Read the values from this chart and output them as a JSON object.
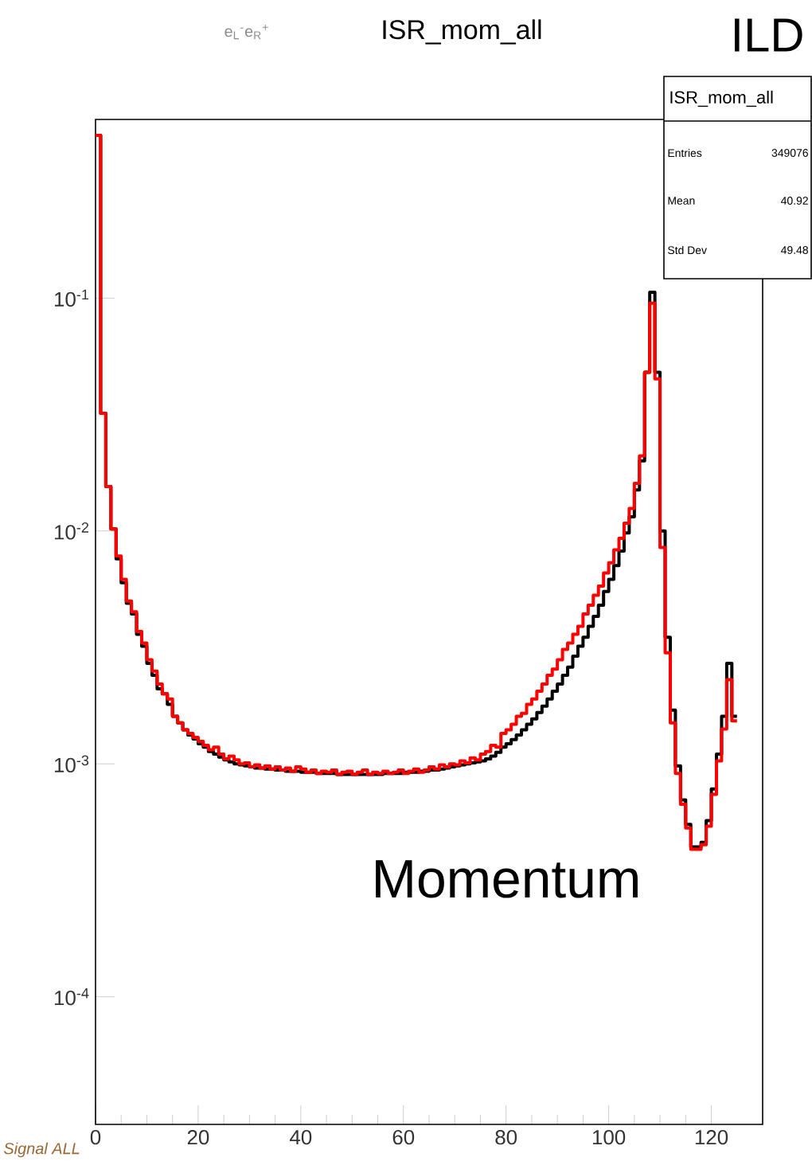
{
  "chart_data": {
    "type": "histogram",
    "title": "ISR_mom_all",
    "annotations": [
      "e$_{L}$$^{-}$e$_{R}$$^{+}$",
      "ILD",
      "ISR_mom_all",
      "Entries",
      "349076",
      "Mean",
      "40.92",
      "Std Dev",
      "49.48",
      "Momentum",
      "Signal ALL"
    ],
    "bins": [
      0,
      1,
      2,
      3,
      4,
      5,
      6,
      7,
      8,
      9,
      10,
      11,
      12,
      13,
      14,
      15,
      16,
      17,
      18,
      19,
      20,
      21,
      22,
      23,
      24,
      25,
      26,
      27,
      28,
      29,
      30,
      31,
      32,
      33,
      34,
      35,
      36,
      37,
      38,
      39,
      40,
      41,
      42,
      43,
      44,
      45,
      46,
      47,
      48,
      49,
      50,
      51,
      52,
      53,
      54,
      55,
      56,
      57,
      58,
      59,
      60,
      61,
      62,
      63,
      64,
      65,
      66,
      67,
      68,
      69,
      70,
      71,
      72,
      73,
      74,
      75,
      76,
      77,
      78,
      79,
      80,
      81,
      82,
      83,
      84,
      85,
      86,
      87,
      88,
      89,
      90,
      91,
      92,
      93,
      94,
      95,
      96,
      97,
      98,
      99,
      100,
      101,
      102,
      103,
      104,
      105,
      106,
      107,
      108,
      109,
      110,
      111,
      112,
      113,
      114,
      115,
      116,
      117,
      118,
      119,
      120,
      121,
      122,
      123,
      124,
      125
    ],
    "series": [
      {
        "color": "#000000",
        "values": [
          0.5,
          0.032,
          0.0155,
          0.0102,
          0.0076,
          0.006,
          0.0049,
          0.0044,
          0.0036,
          0.0032,
          0.0027,
          0.0024,
          0.0021,
          0.002,
          0.0018,
          0.0016,
          0.0015,
          0.0014,
          0.00133,
          0.00128,
          0.00122,
          0.00118,
          0.00113,
          0.0011,
          0.00107,
          0.00104,
          0.00102,
          0.001,
          0.00099,
          0.00098,
          0.00097,
          0.00096,
          0.00096,
          0.00095,
          0.00095,
          0.00094,
          0.00094,
          0.00093,
          0.00093,
          0.00093,
          0.00092,
          0.00092,
          0.00092,
          0.00091,
          0.00091,
          0.00091,
          0.00091,
          0.0009,
          0.0009,
          0.0009,
          0.0009,
          0.0009,
          0.0009,
          0.0009,
          0.0009,
          0.0009,
          0.00091,
          0.00091,
          0.00091,
          0.00091,
          0.00092,
          0.00092,
          0.00092,
          0.00093,
          0.00093,
          0.00094,
          0.00094,
          0.00095,
          0.00096,
          0.00097,
          0.00098,
          0.00099,
          0.001,
          0.00101,
          0.00102,
          0.00103,
          0.00105,
          0.00108,
          0.00112,
          0.00118,
          0.00122,
          0.00127,
          0.00133,
          0.0014,
          0.00148,
          0.00156,
          0.00166,
          0.00177,
          0.0019,
          0.00205,
          0.0022,
          0.0024,
          0.0026,
          0.0029,
          0.0032,
          0.0035,
          0.0039,
          0.0043,
          0.0048,
          0.0055,
          0.0062,
          0.0071,
          0.0082,
          0.0098,
          0.0115,
          0.015,
          0.02,
          0.048,
          0.106,
          0.048,
          0.01,
          0.0035,
          0.0017,
          0.00098,
          0.0007,
          0.00055,
          0.00044,
          0.00044,
          0.00046,
          0.00057,
          0.00078,
          0.0011,
          0.0016,
          0.0027,
          0.0016
        ]
      },
      {
        "color": "#ff0000",
        "values": [
          0.5,
          0.032,
          0.0155,
          0.0102,
          0.0078,
          0.0062,
          0.005,
          0.0045,
          0.0037,
          0.0033,
          0.0028,
          0.0025,
          0.0022,
          0.002,
          0.0019,
          0.0016,
          0.0015,
          0.0014,
          0.00135,
          0.0013,
          0.00125,
          0.0012,
          0.00115,
          0.00118,
          0.0011,
          0.00105,
          0.00108,
          0.00104,
          0.001,
          0.00101,
          0.00097,
          0.00099,
          0.00096,
          0.00098,
          0.00095,
          0.00097,
          0.00094,
          0.00096,
          0.00093,
          0.00097,
          0.00095,
          0.00092,
          0.00094,
          0.00091,
          0.00093,
          0.00092,
          0.00094,
          0.0009,
          0.00092,
          0.00093,
          0.0009,
          0.00092,
          0.00094,
          0.0009,
          0.00092,
          0.00091,
          0.00093,
          0.00091,
          0.00092,
          0.00094,
          0.00091,
          0.00093,
          0.00095,
          0.00092,
          0.00094,
          0.00097,
          0.00095,
          0.00099,
          0.00097,
          0.001,
          0.00099,
          0.00103,
          0.00101,
          0.00106,
          0.00104,
          0.0011,
          0.00113,
          0.0012,
          0.00118,
          0.00135,
          0.0014,
          0.00148,
          0.0016,
          0.00165,
          0.0018,
          0.0019,
          0.00205,
          0.0022,
          0.0024,
          0.00255,
          0.0028,
          0.0031,
          0.0033,
          0.0036,
          0.0039,
          0.0044,
          0.0048,
          0.0053,
          0.0058,
          0.0066,
          0.0073,
          0.0083,
          0.0093,
          0.0108,
          0.0125,
          0.016,
          0.021,
          0.048,
          0.095,
          0.045,
          0.0085,
          0.003,
          0.0015,
          0.00091,
          0.00067,
          0.00053,
          0.00043,
          0.00043,
          0.00045,
          0.00054,
          0.00074,
          0.00103,
          0.00141,
          0.0023,
          0.00153
        ]
      }
    ],
    "xlim": [
      0,
      130
    ],
    "ylim": [
      2.83e-05,
      0.585
    ],
    "log": true,
    "xticks": [
      0,
      20,
      40,
      60,
      80,
      100,
      120
    ],
    "yticks": [
      {
        "value": 0.0001,
        "label": "10$^{-4}$"
      },
      {
        "value": 0.001,
        "label": "10$^{-3}$"
      },
      {
        "value": 0.01,
        "label": "10$^{-2}$"
      },
      {
        "value": 0.1,
        "label": "10$^{-1}$"
      }
    ]
  }
}
